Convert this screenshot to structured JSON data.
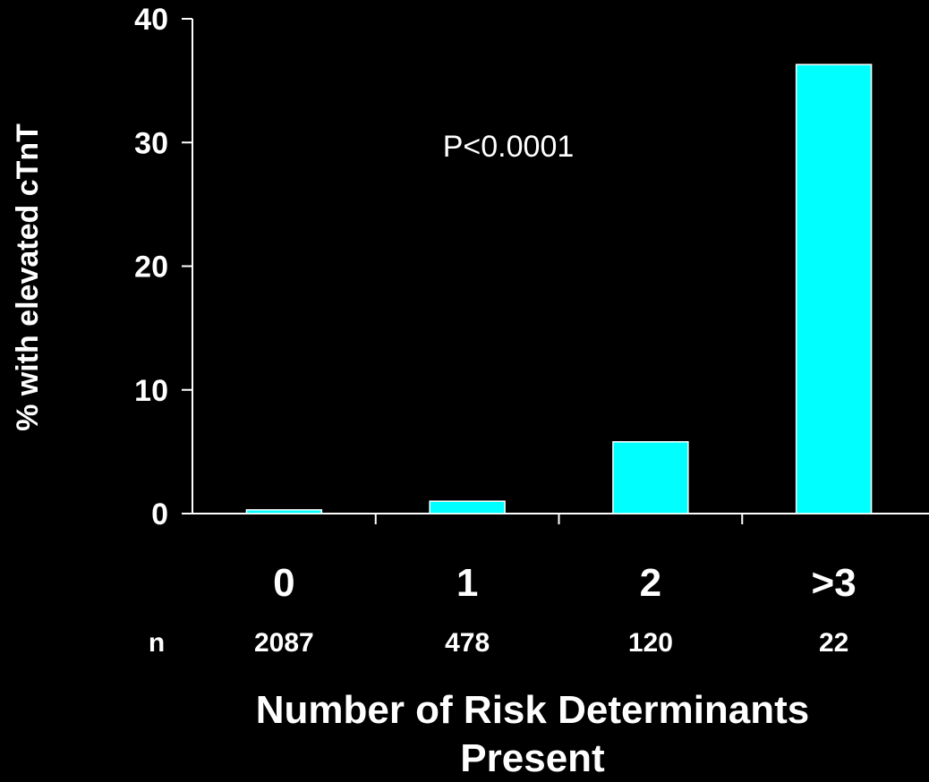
{
  "chart_data": {
    "type": "bar",
    "title": "",
    "ylabel": "% with elevated cTnT",
    "xlabel": "Number of Risk Determinants Present",
    "xlabel_lines": [
      "Number of Risk Determinants",
      "Present"
    ],
    "categories": [
      "0",
      "1",
      "2",
      ">3"
    ],
    "values": [
      0.3,
      1.0,
      5.8,
      36.3
    ],
    "n_label": "n",
    "n_values": [
      "2087",
      "478",
      "120",
      "22"
    ],
    "annotation": "P<0.0001",
    "ylim": [
      0,
      40
    ],
    "yticks": [
      0,
      10,
      20,
      30,
      40
    ],
    "grid": false,
    "legend": "none",
    "colors": {
      "background": "#000000",
      "bar_fill": "#00FFFF",
      "bar_stroke": "#FFFFFF",
      "axis": "#FFFFFF",
      "text": "#FFFFFF"
    }
  }
}
